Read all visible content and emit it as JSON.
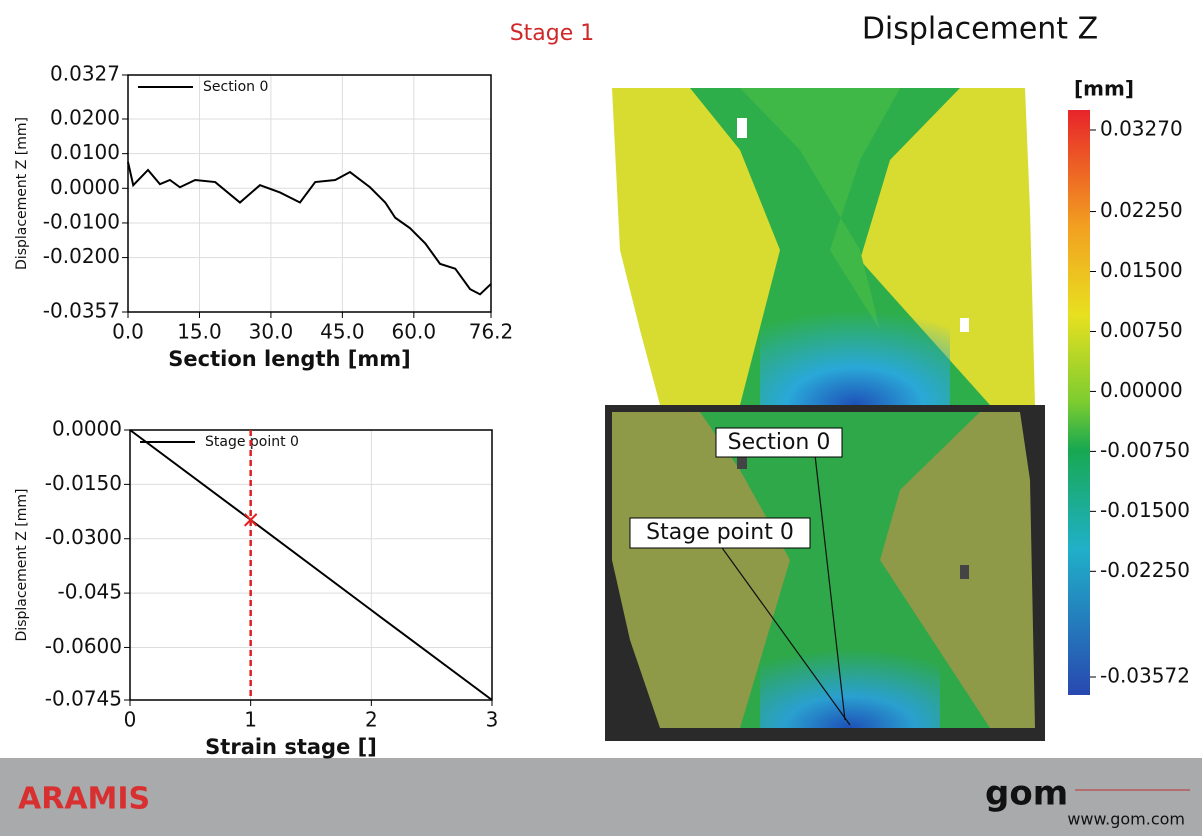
{
  "header": {
    "stage": "Stage 1",
    "title": "Displacement Z"
  },
  "chart_data": [
    {
      "type": "line",
      "x_label": "Section length [mm]",
      "y_label": "Displacement Z [mm]",
      "xlim": [
        0,
        76.2
      ],
      "ylim": [
        -0.0357,
        0.0327
      ],
      "xticks": [
        {
          "value": 0,
          "label": "0.0"
        },
        {
          "value": 15,
          "label": "15.0"
        },
        {
          "value": 30,
          "label": "30.0"
        },
        {
          "value": 45,
          "label": "45.0"
        },
        {
          "value": 60,
          "label": "60.0"
        },
        76.2
      ],
      "yticks": [
        0.0327,
        {
          "value": 0.02,
          "label": "0.0200"
        },
        {
          "value": 0.01,
          "label": "0.0100"
        },
        {
          "value": 0,
          "label": "0.0000"
        },
        {
          "value": -0.01,
          "label": "-0.0100"
        },
        {
          "value": -0.02,
          "label": "-0.0200"
        },
        -0.0357
      ],
      "grid": true,
      "legend": "upper left",
      "series": [
        {
          "name": "Section 0",
          "color": "#000000",
          "x": [
            0,
            1.1,
            4.2,
            6.7,
            8.8,
            10.9,
            14.1,
            18.3,
            23.5,
            27.7,
            31.9,
            36.1,
            39.3,
            43.5,
            46.6,
            50.8,
            54.0,
            56.1,
            59.2,
            62.4,
            65.5,
            68.7,
            71.8,
            73.9,
            76.2
          ],
          "values": [
            0.0076,
            0.0009,
            0.0053,
            0.0012,
            0.0024,
            0.0003,
            0.0024,
            0.0018,
            -0.0041,
            0.0009,
            -0.0012,
            -0.0041,
            0.0018,
            0.0024,
            0.0047,
            0.0003,
            -0.0041,
            -0.0085,
            -0.0115,
            -0.0159,
            -0.0218,
            -0.0232,
            -0.0291,
            -0.0306,
            -0.0276
          ]
        }
      ]
    },
    {
      "type": "line",
      "x_label": "Strain stage []",
      "y_label": "Displacement Z [mm]",
      "xlim": [
        0,
        3
      ],
      "ylim": [
        -0.0745,
        0
      ],
      "xticks": [
        0,
        1,
        2,
        3
      ],
      "yticks": [
        {
          "value": 0,
          "label": "0.0000"
        },
        {
          "value": -0.015,
          "label": "-0.0150"
        },
        {
          "value": -0.03,
          "label": "-0.0300"
        },
        -0.045,
        {
          "value": -0.06,
          "label": "-0.0600"
        },
        -0.0745
      ],
      "grid": true,
      "legend": "upper left",
      "marker": {
        "x": 1,
        "color": "#e02020"
      },
      "series": [
        {
          "name": "Stage point 0",
          "color": "#000000",
          "x": [
            0,
            1,
            2,
            3
          ],
          "values": [
            0,
            -0.0248,
            -0.0497,
            -0.0745
          ]
        }
      ]
    }
  ],
  "colorbar": {
    "unit": "[mm]",
    "ticks": [
      {
        "value": 0.0327,
        "label": "0.03270"
      },
      {
        "value": 0.0225,
        "label": "0.02250"
      },
      {
        "value": 0.015,
        "label": "0.01500"
      },
      {
        "value": 0.0075,
        "label": "0.00750"
      },
      {
        "value": 0,
        "label": "0.00000"
      },
      {
        "value": -0.0075,
        "label": "-0.00750"
      },
      {
        "value": -0.015,
        "label": "-0.01500"
      },
      {
        "value": -0.0225,
        "label": "-0.02250"
      },
      -0.03572
    ]
  },
  "image_labels": [
    "Section 0",
    "Stage point 0"
  ],
  "footer": {
    "product": "ARAMIS",
    "logo": "gom",
    "url": "www.gom.com"
  }
}
